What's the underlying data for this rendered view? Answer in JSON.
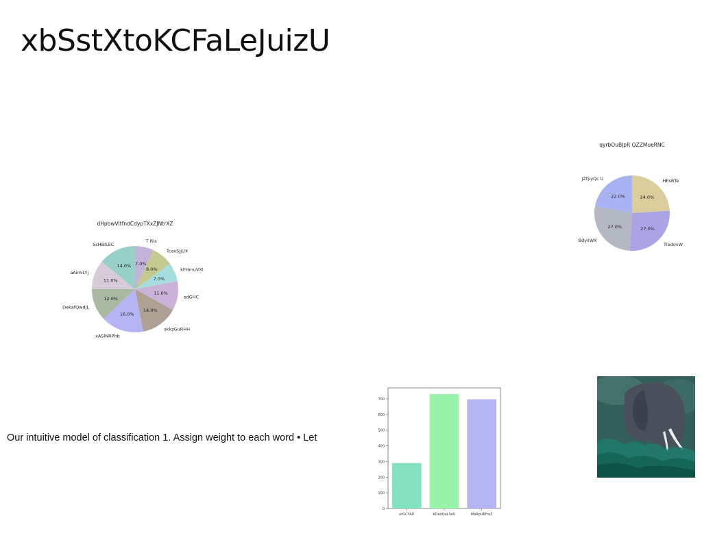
{
  "slide": {
    "title": "xbSstXtoKCFaLeJuizU",
    "body_text": "Our intuitive model of classification 1. Assign weight to each word • Let"
  },
  "chart_data": [
    {
      "type": "pie",
      "title": "dHpbwVltfndCdypTXxZJNtrXZ",
      "labels": [
        "T RIx",
        "TcavSJjUX",
        "kFHmuVXl",
        "sdGHC",
        "skkzGuRHH",
        "xASlNRPhb",
        "DekafQwdjL",
        "aAimiLYj",
        "ScHBILEC"
      ],
      "values": [
        7.0,
        8.0,
        7.0,
        11.0,
        14.0,
        16.0,
        12.0,
        11.0,
        14.0
      ],
      "value_labels": [
        "7.0%",
        "8.0%",
        "7.0%",
        "11.0%",
        "14.0%",
        "16.0%",
        "12.0%",
        "11.0%",
        "14.0%"
      ],
      "colors": [
        "#c3b3d6",
        "#c4c990",
        "#a8dde0",
        "#cbb2d8",
        "#aea194",
        "#b6b4f4",
        "#a9b8a0",
        "#d8cbd9",
        "#98cfc6"
      ]
    },
    {
      "type": "pie",
      "title": "qyrbOuBJpR QZZMueRNC",
      "labels": [
        "HEsBTe",
        "TledovW",
        "BdyiiWX",
        "jZfpyQc U"
      ],
      "values": [
        24.0,
        27.0,
        27.0,
        22.0
      ],
      "value_labels": [
        "24.0%",
        "27.0%",
        "27.0%",
        "22.0%"
      ],
      "colors": [
        "#d9ce9c",
        "#aaa4e6",
        "#b3b8c2",
        "#a9b2f2"
      ]
    },
    {
      "type": "bar",
      "categories": [
        "erGCYAD",
        "KDedQaLSnU",
        "MaRpURFwZ"
      ],
      "values": [
        290,
        730,
        697
      ],
      "ylim": [
        0,
        770
      ],
      "yticks": [
        0,
        100,
        200,
        300,
        400,
        500,
        600,
        700
      ],
      "colors": [
        "#85e2be",
        "#98f2a8",
        "#b5b5f4"
      ]
    }
  ],
  "image": {
    "subject": "elephant-photo"
  }
}
